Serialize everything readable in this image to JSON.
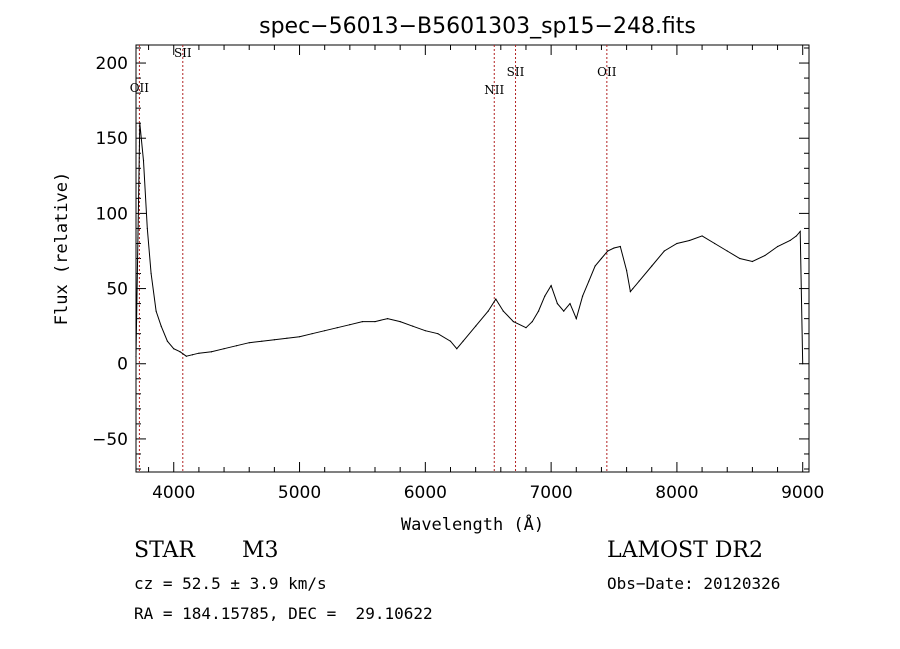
{
  "chart_data": {
    "type": "line",
    "title": "spec−56013−B5601303_sp15−248.fits",
    "xlabel": "Wavelength (Å)",
    "ylabel": "Flux (relative)",
    "xlim": [
      3700,
      9050
    ],
    "ylim": [
      -72,
      212
    ],
    "xticks": [
      4000,
      5000,
      6000,
      7000,
      8000,
      9000
    ],
    "yticks": [
      -50,
      0,
      50,
      100,
      150,
      200
    ],
    "xtick_labels": [
      "4000",
      "5000",
      "6000",
      "7000",
      "8000",
      "9000"
    ],
    "ytick_labels": [
      "−50",
      "0",
      "50",
      "100",
      "150",
      "200"
    ],
    "grid": false,
    "series": [
      {
        "x": [
          3700,
          3730,
          3760,
          3790,
          3820,
          3860,
          3900,
          3950,
          4000,
          4050,
          4100,
          4150,
          4200,
          4300,
          4400,
          4500,
          4600,
          4700,
          4800,
          4900,
          5000,
          5100,
          5200,
          5300,
          5400,
          5500,
          5600,
          5700,
          5800,
          5900,
          6000,
          6100,
          6200,
          6250,
          6300,
          6400,
          6500,
          6560,
          6620,
          6700,
          6800,
          6850,
          6900,
          6950,
          7000,
          7050,
          7100,
          7150,
          7200,
          7250,
          7300,
          7350,
          7400,
          7450,
          7500,
          7550,
          7600,
          7630,
          7650,
          7700,
          7800,
          7900,
          8000,
          8100,
          8200,
          8300,
          8400,
          8500,
          8600,
          8700,
          8800,
          8900,
          8950,
          8980,
          9000
        ],
        "y": [
          5,
          160,
          135,
          90,
          60,
          35,
          25,
          15,
          10,
          8,
          5,
          6,
          7,
          8,
          10,
          12,
          14,
          15,
          16,
          17,
          18,
          20,
          22,
          24,
          26,
          28,
          28,
          30,
          28,
          25,
          22,
          20,
          15,
          10,
          15,
          25,
          35,
          43,
          35,
          28,
          24,
          28,
          35,
          45,
          52,
          40,
          35,
          40,
          30,
          45,
          55,
          65,
          70,
          75,
          77,
          78,
          62,
          48,
          50,
          55,
          65,
          75,
          80,
          82,
          85,
          80,
          75,
          70,
          68,
          72,
          78,
          82,
          85,
          88,
          0
        ]
      }
    ],
    "lines": [
      {
        "label": "OII",
        "x": 3727
      },
      {
        "label": "SII",
        "x": 4072
      },
      {
        "label": "NII",
        "x": 6548
      },
      {
        "label": "SII",
        "x": 6717
      },
      {
        "label": "OII",
        "x": 7443
      }
    ],
    "colors": {
      "spectrum": "#000000",
      "line_marker": "#b22222",
      "axes": "#000000"
    }
  },
  "info": {
    "object_type": "STAR",
    "subclass": "M3",
    "survey": "LAMOST DR2",
    "cz": "cz = 52.5 ± 3.9 km/s",
    "obs_date": "Obs−Date: 20120326",
    "radec": "RA = 184.15785, DEC =  29.10622"
  }
}
